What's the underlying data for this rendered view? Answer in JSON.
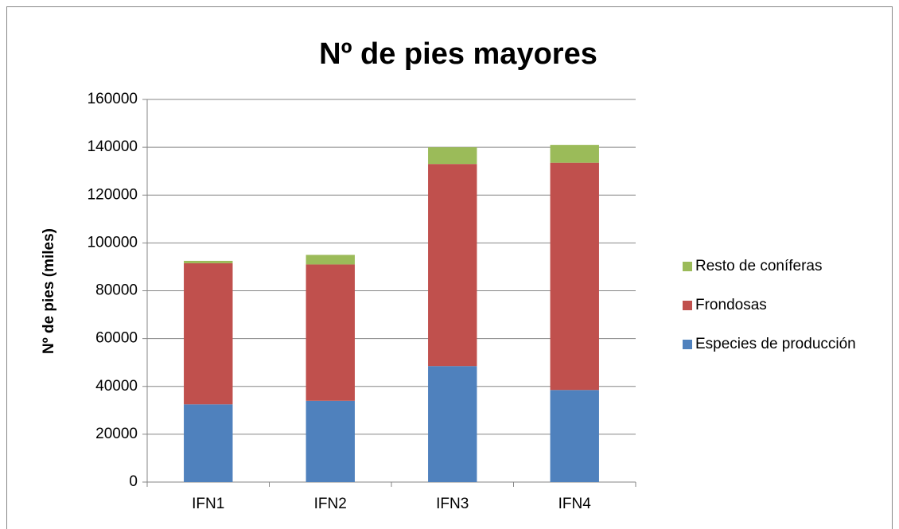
{
  "chart_data": {
    "type": "stacked_bar",
    "title": "Nº de pies mayores",
    "y_label": "Nº de pies (miles)",
    "categories": [
      "IFN1",
      "IFN2",
      "IFN3",
      "IFN4"
    ],
    "series": [
      {
        "name": "Especies de producción",
        "color": "#4f81bd",
        "values": [
          32500,
          34000,
          48500,
          38500
        ]
      },
      {
        "name": "Frondosas",
        "color": "#c0504d",
        "values": [
          59000,
          57000,
          84500,
          95000
        ]
      },
      {
        "name": "Resto de coníferas",
        "color": "#9bbb59",
        "values": [
          1000,
          4000,
          7000,
          7500
        ]
      }
    ],
    "ylim": [
      0,
      160000
    ],
    "yticks": [
      0,
      20000,
      40000,
      60000,
      80000,
      100000,
      120000,
      140000,
      160000
    ],
    "grid": true,
    "legend": "right"
  }
}
